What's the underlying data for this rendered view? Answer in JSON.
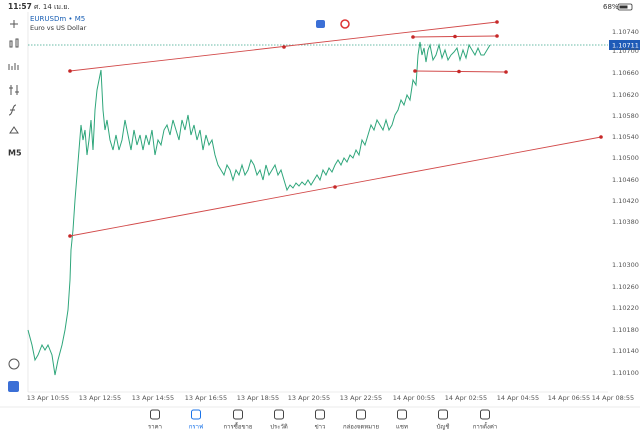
{
  "status_bar": {
    "time": "11:57",
    "date": "ศ. 14 เม.ย.",
    "battery": "68%"
  },
  "symbol": {
    "name": "EURUSDm • M5",
    "description": "Euro vs US Dollar"
  },
  "timeframe": "M5",
  "current_price": "1.10711",
  "price_axis": [
    "1.10740",
    "1.10700",
    "1.10660",
    "1.10620",
    "1.10580",
    "1.10540",
    "1.10500",
    "1.10460",
    "1.10420",
    "1.10380",
    "1.10300",
    "1.10260",
    "1.10220",
    "1.10180",
    "1.10140",
    "1.10100"
  ],
  "time_axis": [
    "13 Apr 10:55",
    "13 Apr 12:55",
    "13 Apr 14:55",
    "13 Apr 16:55",
    "13 Apr 18:55",
    "13 Apr 20:55",
    "13 Apr 22:55",
    "14 Apr 00:55",
    "14 Apr 02:55",
    "14 Apr 04:55",
    "14 Apr 06:55",
    "14 Apr 08:55"
  ],
  "tabs": [
    {
      "label": "ราคา"
    },
    {
      "label": "กราฟ"
    },
    {
      "label": "การซื้อขาย"
    },
    {
      "label": "ประวัติ"
    },
    {
      "label": "ข่าว"
    },
    {
      "label": "กล่องจดหมาย"
    },
    {
      "label": "แชท"
    },
    {
      "label": "บัญชี"
    },
    {
      "label": "การตั้งค่า"
    }
  ]
}
